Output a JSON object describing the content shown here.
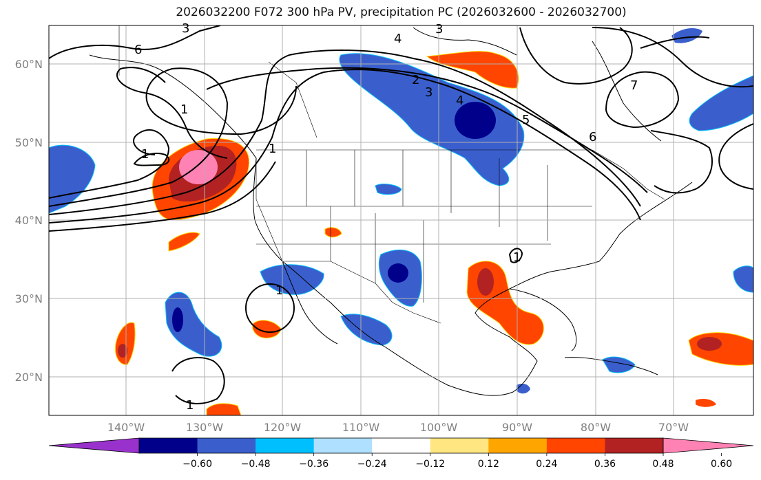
{
  "title": "2026032200 F072 300 hPa PV, precipitation PC (2026032600 - 2026032700)",
  "lat_labels": [
    "60°N",
    "50°N",
    "40°N",
    "30°N",
    "20°N"
  ],
  "lon_labels": [
    "140°W",
    "130°W",
    "120°W",
    "110°W",
    "100°W",
    "90°W",
    "80°W",
    "70°W"
  ],
  "colorbar": {
    "tick_labels": [
      "−0.60",
      "−0.48",
      "−0.36",
      "−0.24",
      "−0.12",
      "0.12",
      "0.24",
      "0.36",
      "0.48",
      "0.60"
    ],
    "colors": [
      "#9932cc",
      "#00008b",
      "#3a5fcd",
      "#00bfff",
      "#b0e0ff",
      "#ffffff",
      "#ffe680",
      "#ffa500",
      "#ff4500",
      "#b22222",
      "#ff82b4"
    ]
  },
  "contour_labels": [
    "3",
    "6",
    "4",
    "3",
    "1",
    "2",
    "3",
    "4",
    "5",
    "6",
    "7",
    "1",
    "1",
    "1",
    "1",
    "1"
  ],
  "colors": {
    "land_line": "#000000",
    "grid": "#b0b0b0",
    "axis_text": "#808080"
  }
}
